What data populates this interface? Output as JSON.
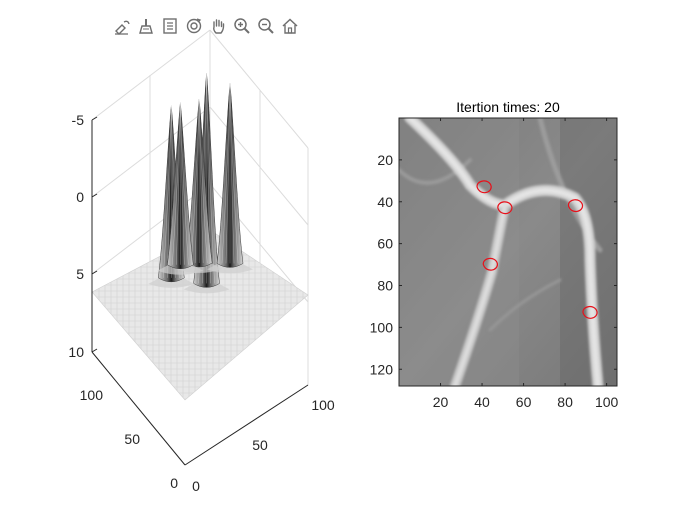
{
  "toolbar": {
    "buttons": [
      {
        "name": "data-tips-button",
        "icon": "data-tip-icon"
      },
      {
        "name": "brush-button",
        "icon": "brush-icon"
      },
      {
        "name": "legend-button",
        "icon": "legend-icon"
      },
      {
        "name": "rotate-3d-button",
        "icon": "rotate-3d-icon"
      },
      {
        "name": "pan-button",
        "icon": "hand-icon"
      },
      {
        "name": "zoom-in-button",
        "icon": "zoom-in-icon"
      },
      {
        "name": "zoom-out-button",
        "icon": "zoom-out-icon"
      },
      {
        "name": "home-button",
        "icon": "home-icon"
      }
    ],
    "icon_color": "#6f6f6f"
  },
  "chart_data": [
    {
      "type": "surface",
      "z_reversed": true,
      "zlim": [
        -5,
        10
      ],
      "z_ticks": [
        "-5",
        "0",
        "5",
        "10"
      ],
      "x_ticks": [
        "0",
        "50",
        "100"
      ],
      "y_ticks": [
        "0",
        "50",
        "100"
      ],
      "grid": true,
      "colormap": "gray",
      "peaks": [
        {
          "x": 60,
          "y": 55,
          "height": 10.5
        },
        {
          "x": 45,
          "y": 75,
          "height": 8.6
        },
        {
          "x": 65,
          "y": 70,
          "height": 8.2
        },
        {
          "x": 80,
          "y": 55,
          "height": 9.0
        },
        {
          "x": 55,
          "y": 78,
          "height": 8.1
        }
      ]
    },
    {
      "type": "image",
      "title": "Itertion times: 20",
      "x_ticks": [
        "20",
        "40",
        "60",
        "80",
        "100"
      ],
      "y_ticks": [
        "20",
        "40",
        "60",
        "80",
        "100",
        "120"
      ],
      "xlim": [
        0,
        105
      ],
      "ylim": [
        0,
        128
      ],
      "contour_color": "#e8101a",
      "contours": [
        {
          "x": 41,
          "y": 33
        },
        {
          "x": 51,
          "y": 43
        },
        {
          "x": 85,
          "y": 42
        },
        {
          "x": 44,
          "y": 70
        },
        {
          "x": 92,
          "y": 93
        }
      ]
    }
  ]
}
